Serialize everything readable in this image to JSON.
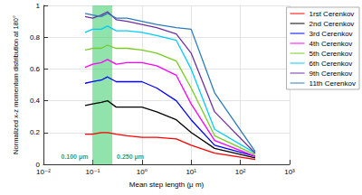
{
  "chart_data": {
    "type": "line",
    "log": "x",
    "grid": true,
    "legend": "right",
    "xlabel": "Mean step length (μ m)",
    "ylabel": "Normalized x-z momentum distribution at 180°",
    "xlim": [
      0.01,
      1000
    ],
    "xticks": [
      {
        "value": 0.01,
        "label": "10⁻²"
      },
      {
        "value": 0.1,
        "label": "10⁻¹"
      },
      {
        "value": 1,
        "label": "10⁰"
      },
      {
        "value": 10,
        "label": "10¹"
      },
      {
        "value": 100,
        "label": "10²"
      },
      {
        "value": 1000,
        "label": "10³"
      }
    ],
    "ylim": [
      0,
      1
    ],
    "yticks": [
      0,
      0.2,
      0.4,
      0.6,
      0.8,
      1
    ],
    "band": {
      "x": [
        0.1,
        0.25
      ],
      "color": "#33cc66",
      "annotations": [
        "0.100 μm",
        "0.250 μm"
      ]
    },
    "x": [
      0.07,
      0.1,
      0.15,
      0.2,
      0.3,
      0.5,
      1,
      2,
      5,
      10,
      30,
      200
    ],
    "series": [
      {
        "name": "1rst Cerenkov",
        "color": "#ff0000",
        "values": [
          0.19,
          0.19,
          0.2,
          0.2,
          0.19,
          0.18,
          0.17,
          0.17,
          0.16,
          0.12,
          0.07,
          0.03
        ]
      },
      {
        "name": "2nd Cerenkov",
        "color": "#000000",
        "values": [
          0.37,
          0.38,
          0.39,
          0.4,
          0.36,
          0.36,
          0.36,
          0.33,
          0.28,
          0.2,
          0.1,
          0.04
        ]
      },
      {
        "name": "3rd Cerenkov",
        "color": "#0000ff",
        "values": [
          0.51,
          0.52,
          0.53,
          0.55,
          0.52,
          0.52,
          0.52,
          0.48,
          0.4,
          0.28,
          0.12,
          0.05
        ]
      },
      {
        "name": "4th Cerenkov",
        "color": "#ff00ff",
        "values": [
          0.61,
          0.63,
          0.64,
          0.66,
          0.63,
          0.64,
          0.64,
          0.62,
          0.56,
          0.38,
          0.15,
          0.05
        ]
      },
      {
        "name": "5th Cerenkov",
        "color": "#77cc22",
        "values": [
          0.72,
          0.73,
          0.73,
          0.75,
          0.73,
          0.73,
          0.72,
          0.7,
          0.65,
          0.48,
          0.18,
          0.06
        ]
      },
      {
        "name": "6th Cerenkov",
        "color": "#00ccff",
        "values": [
          0.83,
          0.85,
          0.85,
          0.87,
          0.84,
          0.84,
          0.83,
          0.81,
          0.78,
          0.6,
          0.22,
          0.07
        ]
      },
      {
        "name": "9th Cerenkov",
        "color": "#7030a0",
        "values": [
          0.93,
          0.92,
          0.94,
          0.96,
          0.91,
          0.9,
          0.88,
          0.86,
          0.82,
          0.7,
          0.33,
          0.07
        ]
      },
      {
        "name": "11th Cerenkov",
        "color": "#2b7bb9",
        "values": [
          0.95,
          0.94,
          0.93,
          0.95,
          0.92,
          0.92,
          0.9,
          0.88,
          0.86,
          0.85,
          0.45,
          0.08
        ]
      }
    ]
  }
}
